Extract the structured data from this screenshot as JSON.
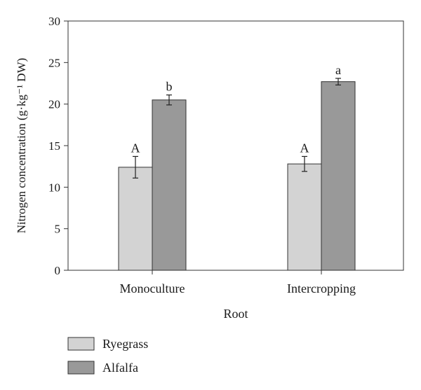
{
  "chart_data": {
    "type": "bar",
    "categories": [
      "Monoculture",
      "Intercropping"
    ],
    "series": [
      {
        "name": "Ryegrass",
        "color": "#d3d3d3",
        "values": [
          12.4,
          12.8
        ],
        "errors": [
          1.3,
          0.9
        ],
        "letters": [
          "A",
          "A"
        ]
      },
      {
        "name": "Alfalfa",
        "color": "#999999",
        "values": [
          20.5,
          22.7
        ],
        "errors": [
          0.6,
          0.4
        ],
        "letters": [
          "b",
          "a"
        ]
      }
    ],
    "xlabel": "Root",
    "ylabel": "Nitrogen concentration (g·kg⁻¹ DW)",
    "ylim": [
      0,
      30
    ],
    "yticks": [
      "0",
      "5",
      "10",
      "15",
      "20",
      "25",
      "30"
    ],
    "grid": false,
    "legend_position": "bottom-left"
  }
}
